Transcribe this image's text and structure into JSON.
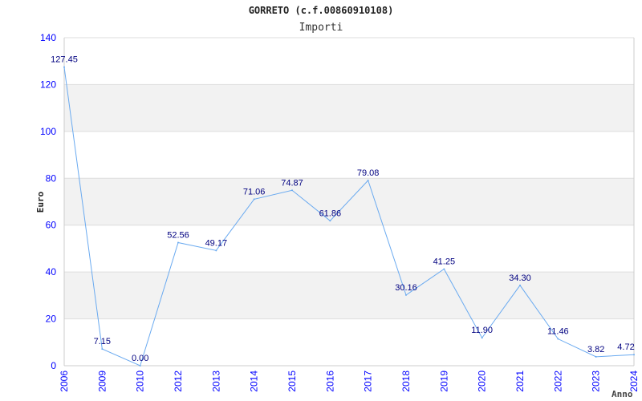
{
  "chart_data": {
    "type": "line",
    "title": "GORRETO (c.f.00860910108)",
    "subtitle": "Importi",
    "xlabel": "Anno",
    "ylabel": "Euro",
    "categories": [
      "2006",
      "2009",
      "2010",
      "2012",
      "2013",
      "2014",
      "2015",
      "2016",
      "2017",
      "2018",
      "2019",
      "2020",
      "2021",
      "2022",
      "2023",
      "2024"
    ],
    "values": [
      127.45,
      7.15,
      0.0,
      52.56,
      49.17,
      71.06,
      74.87,
      61.86,
      79.08,
      30.16,
      41.25,
      11.9,
      34.3,
      11.46,
      3.82,
      4.72
    ],
    "data_labels": [
      "127.45",
      "7.15",
      "0.00",
      "52.56",
      "49.17",
      "71.06",
      "74.87",
      "61.86",
      "79.08",
      "30.16",
      "41.25",
      "11.90",
      "34.30",
      "11.46",
      "3.82",
      "4.72"
    ],
    "ylim": [
      0,
      140
    ],
    "yticks": [
      0,
      20,
      40,
      60,
      80,
      100,
      120,
      140
    ],
    "grid": true,
    "colors": {
      "line": "#6aaaf0",
      "label": "#000080",
      "tick": "#0000ff",
      "band": "#f2f2f2",
      "grid": "#dddddd"
    }
  }
}
